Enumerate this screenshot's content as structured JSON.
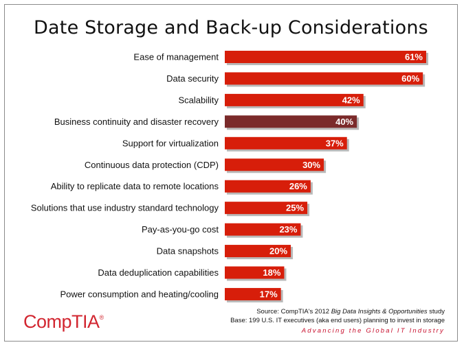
{
  "title": "Date Storage and Back-up Considerations",
  "chart_data": {
    "type": "bar",
    "orientation": "horizontal",
    "categories": [
      "Ease of management",
      "Data security",
      "Scalability",
      "Business continuity and disaster recovery",
      "Support for virtualization",
      "Continuous data protection (CDP)",
      "Ability to replicate data to remote locations",
      "Solutions that use industry standard technology",
      "Pay-as-you-go cost",
      "Data snapshots",
      "Data deduplication capabilities",
      "Power consumption and heating/cooling"
    ],
    "values": [
      61,
      60,
      42,
      40,
      37,
      30,
      26,
      25,
      23,
      20,
      18,
      17
    ],
    "value_labels": [
      "61%",
      "60%",
      "42%",
      "40%",
      "37%",
      "30%",
      "26%",
      "25%",
      "23%",
      "20%",
      "18%",
      "17%"
    ],
    "unit": "%",
    "xlim": [
      0,
      61
    ],
    "highlight_index": 3,
    "colors": {
      "bar": "#d71e0a",
      "highlight": "#7b2a2a",
      "shadow": "#b9b9b9"
    },
    "grid": false,
    "legend": "none"
  },
  "footer": {
    "source_prefix": "Source: CompTIA's 2012 ",
    "source_italic": "Big Data Insights & Opportunities",
    "source_suffix": " study",
    "base": "Base: 199 U.S. IT executives (aka end users) planning to invest in storage",
    "tagline": "Advancing the Global IT Industry"
  },
  "logo": {
    "text": "CompTIA",
    "mark": "®",
    "color": "#d22630"
  }
}
